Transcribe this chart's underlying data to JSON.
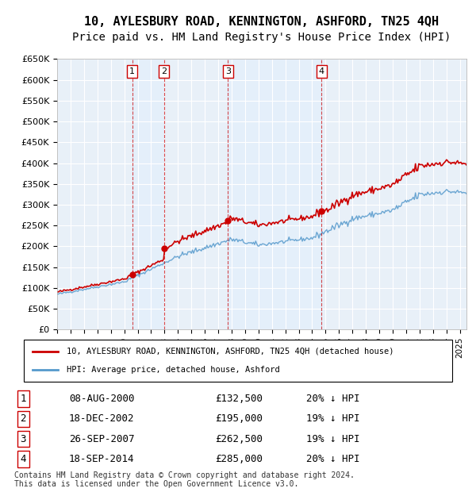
{
  "title": "10, AYLESBURY ROAD, KENNINGTON, ASHFORD, TN25 4QH",
  "subtitle": "Price paid vs. HM Land Registry's House Price Index (HPI)",
  "ylabel": "",
  "ylim": [
    0,
    650000
  ],
  "yticks": [
    0,
    50000,
    100000,
    150000,
    200000,
    250000,
    300000,
    350000,
    400000,
    450000,
    500000,
    550000,
    600000,
    650000
  ],
  "xlim_start": 1995.0,
  "xlim_end": 2025.5,
  "background_color": "#ffffff",
  "plot_bg_color": "#e8f0f8",
  "grid_color": "#ffffff",
  "legend_line1": "10, AYLESBURY ROAD, KENNINGTON, ASHFORD, TN25 4QH (detached house)",
  "legend_line2": "HPI: Average price, detached house, Ashford",
  "sale_color": "#cc0000",
  "hpi_color": "#5599cc",
  "vline_color": "#cc0000",
  "vline_style": "dashed",
  "sales": [
    {
      "date": 2000.6,
      "price": 132500,
      "label": "1"
    },
    {
      "date": 2002.96,
      "price": 195000,
      "label": "2"
    },
    {
      "date": 2007.73,
      "price": 262500,
      "label": "3"
    },
    {
      "date": 2014.71,
      "price": 285000,
      "label": "4"
    }
  ],
  "table": [
    {
      "num": "1",
      "date": "08-AUG-2000",
      "price": "£132,500",
      "pct": "20% ↓ HPI"
    },
    {
      "num": "2",
      "date": "18-DEC-2002",
      "price": "£195,000",
      "pct": "19% ↓ HPI"
    },
    {
      "num": "3",
      "date": "26-SEP-2007",
      "price": "£262,500",
      "pct": "19% ↓ HPI"
    },
    {
      "num": "4",
      "date": "18-SEP-2014",
      "price": "£285,000",
      "pct": "20% ↓ HPI"
    }
  ],
  "footer": "Contains HM Land Registry data © Crown copyright and database right 2024.\nThis data is licensed under the Open Government Licence v3.0.",
  "title_fontsize": 11,
  "subtitle_fontsize": 10,
  "tick_fontsize": 9,
  "label_fontsize": 9
}
